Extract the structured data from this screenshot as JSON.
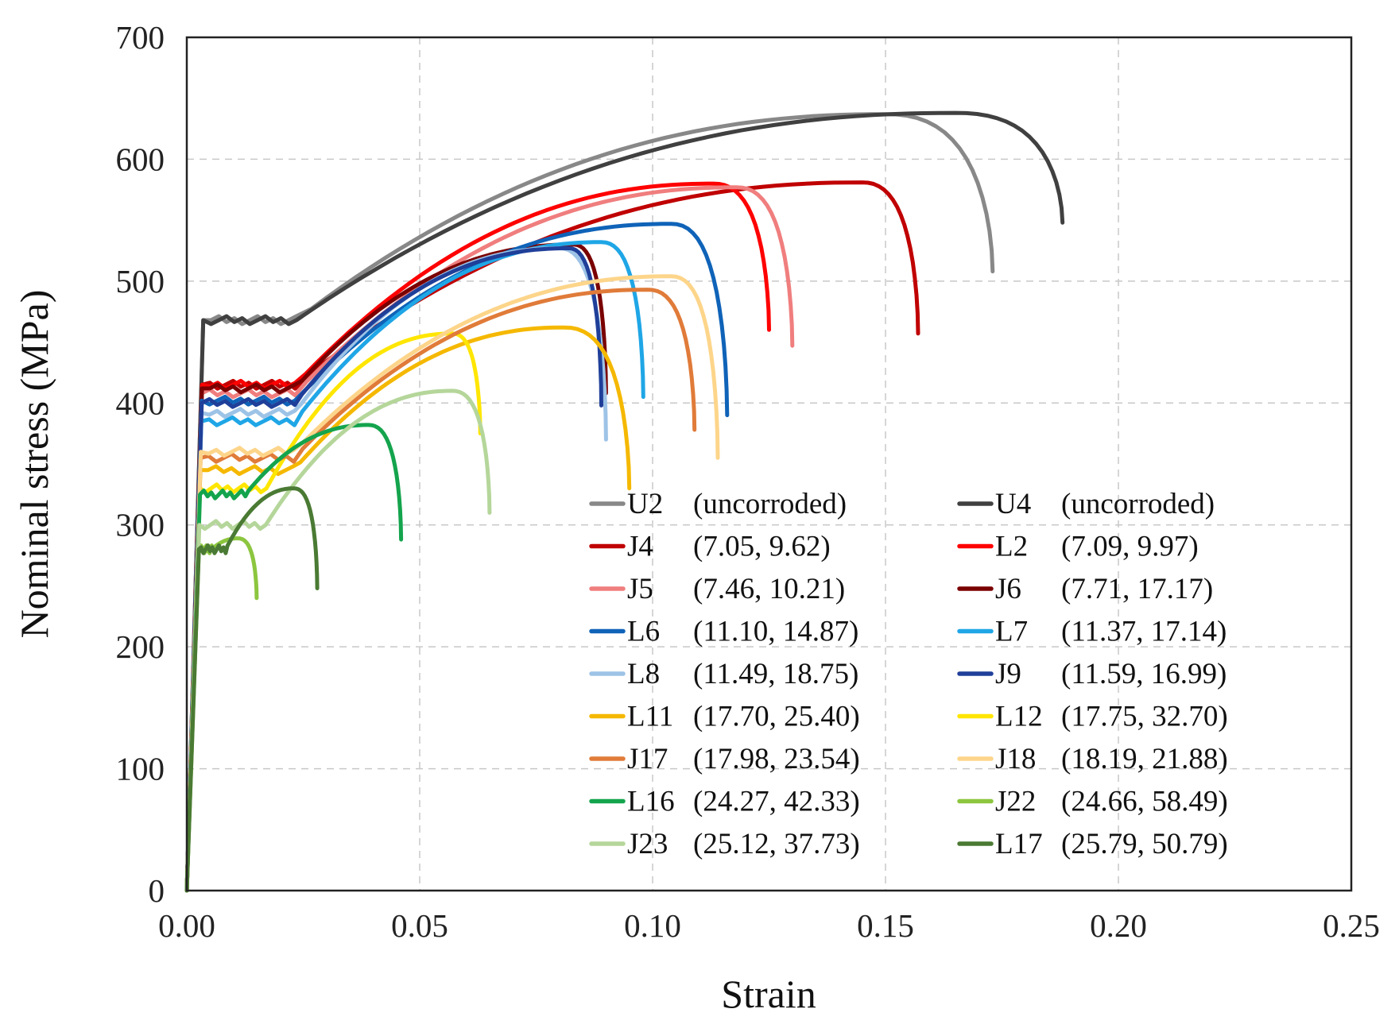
{
  "chart_data": {
    "type": "line",
    "xlabel": "Strain",
    "ylabel": "Nominal stress (MPa)",
    "xlim": [
      0,
      0.25
    ],
    "ylim": [
      0,
      700
    ],
    "x_ticks": [
      "0.00",
      "0.05",
      "0.10",
      "0.15",
      "0.20",
      "0.25"
    ],
    "y_ticks": [
      "0",
      "100",
      "200",
      "300",
      "400",
      "500",
      "600",
      "700"
    ],
    "grid": true,
    "legend_position": "bottom-right",
    "series": [
      {
        "name": "U2",
        "desc": "(uncorroded)",
        "color": "#888888",
        "yield": 468,
        "peak": [
          0.15,
          637
        ],
        "end": [
          0.173,
          508
        ]
      },
      {
        "name": "U4",
        "desc": "(uncorroded)",
        "color": "#404040",
        "yield": 468,
        "peak": [
          0.165,
          638
        ],
        "end": [
          0.188,
          548
        ]
      },
      {
        "name": "J4",
        "desc": "(7.05, 9.62)",
        "color": "#c00000",
        "yield": 415,
        "peak": [
          0.145,
          581
        ],
        "end": [
          0.157,
          457
        ]
      },
      {
        "name": "L2",
        "desc": "(7.09, 9.97)",
        "color": "#ff0000",
        "yield": 415,
        "peak": [
          0.113,
          580
        ],
        "end": [
          0.125,
          460
        ]
      },
      {
        "name": "J5",
        "desc": "(7.46, 10.21)",
        "color": "#f07e7e",
        "yield": 408,
        "peak": [
          0.118,
          577
        ],
        "end": [
          0.13,
          447
        ]
      },
      {
        "name": "J6",
        "desc": "(7.71, 17.17)",
        "color": "#7a0000",
        "yield": 412,
        "peak": [
          0.083,
          530
        ],
        "end": [
          0.09,
          408
        ]
      },
      {
        "name": "L6",
        "desc": "(11.10, 14.87)",
        "color": "#0f63b8",
        "yield": 402,
        "peak": [
          0.104,
          547
        ],
        "end": [
          0.116,
          390
        ]
      },
      {
        "name": "L7",
        "desc": "(11.37, 17.14)",
        "color": "#1fa6e6",
        "yield": 385,
        "peak": [
          0.089,
          532
        ],
        "end": [
          0.098,
          405
        ]
      },
      {
        "name": "L8",
        "desc": "(11.49, 18.75)",
        "color": "#9dc3e6",
        "yield": 392,
        "peak": [
          0.08,
          527
        ],
        "end": [
          0.09,
          370
        ]
      },
      {
        "name": "J9",
        "desc": "(11.59, 16.99)",
        "color": "#1f3f99",
        "yield": 400,
        "peak": [
          0.082,
          527
        ],
        "end": [
          0.089,
          398
        ]
      },
      {
        "name": "L11",
        "desc": "(17.70, 25.40)",
        "color": "#f5b800",
        "yield": 345,
        "peak": [
          0.081,
          462
        ],
        "end": [
          0.095,
          330
        ]
      },
      {
        "name": "L12",
        "desc": "(17.75, 32.70)",
        "color": "#ffe600",
        "yield": 330,
        "peak": [
          0.057,
          457
        ],
        "end": [
          0.063,
          375
        ]
      },
      {
        "name": "J17",
        "desc": "(17.98, 23.54)",
        "color": "#e07b39",
        "yield": 355,
        "peak": [
          0.099,
          493
        ],
        "end": [
          0.109,
          378
        ]
      },
      {
        "name": "J18",
        "desc": "(18.19, 21.88)",
        "color": "#fdd58a",
        "yield": 360,
        "peak": [
          0.104,
          504
        ],
        "end": [
          0.114,
          355
        ]
      },
      {
        "name": "L16",
        "desc": "(24.27, 42.33)",
        "color": "#14a44d",
        "yield": 325,
        "peak": [
          0.039,
          382
        ],
        "end": [
          0.046,
          288
        ]
      },
      {
        "name": "J22",
        "desc": "(24.66, 58.49)",
        "color": "#8cc63f",
        "yield": 280,
        "peak": [
          0.011,
          289
        ],
        "end": [
          0.015,
          240
        ]
      },
      {
        "name": "J23",
        "desc": "(25.12, 37.73)",
        "color": "#b5d69a",
        "yield": 300,
        "peak": [
          0.057,
          410
        ],
        "end": [
          0.065,
          310
        ]
      },
      {
        "name": "L17",
        "desc": "(25.79, 50.79)",
        "color": "#4a7a33",
        "yield": 280,
        "peak": [
          0.023,
          330
        ],
        "end": [
          0.028,
          248
        ]
      }
    ]
  }
}
